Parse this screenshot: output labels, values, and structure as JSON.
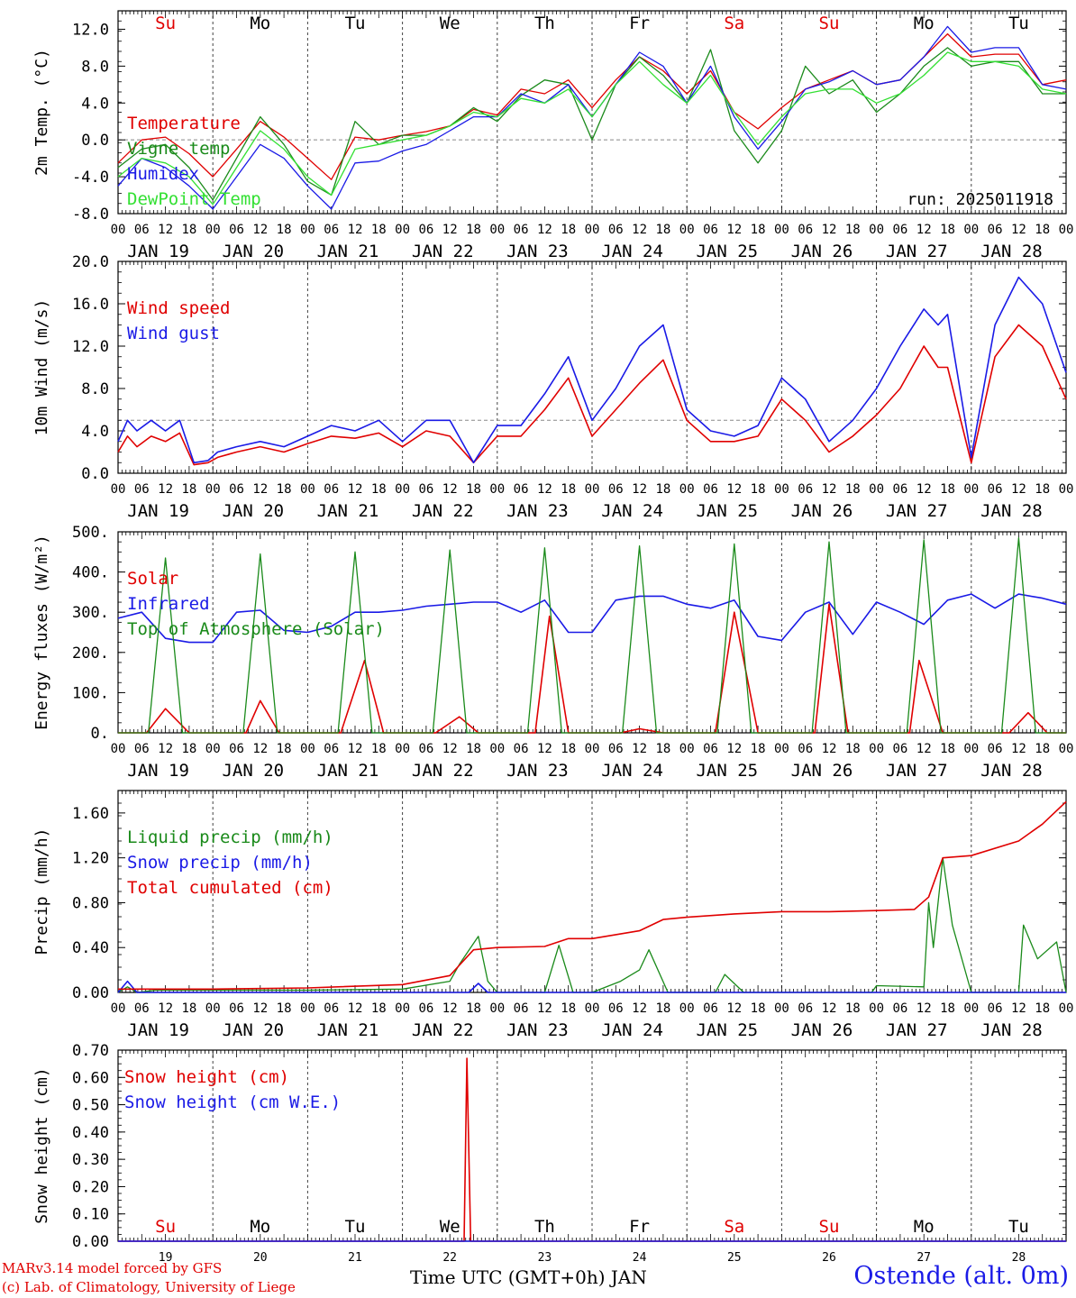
{
  "colors": {
    "red": "#e00000",
    "blue": "#1a1ae6",
    "green": "#1a8a1a",
    "lightgreen": "#33e033",
    "black": "#000000",
    "ref": "#888888"
  },
  "footer": {
    "credit_line1": "MARv3.14 model forced by GFS",
    "credit_line2": "(c) Lab. of Climatology, University of Liege",
    "xlabel": "Time UTC (GMT+0h) JAN",
    "station": "Ostende (alt. 0m)"
  },
  "x_axis": {
    "start_day": 19,
    "days": 10,
    "hour_ticks": [
      "00",
      "06",
      "12",
      "18"
    ],
    "end_tick": "00",
    "date_labels": [
      "JAN 19",
      "JAN 20",
      "JAN 21",
      "JAN 22",
      "JAN 23",
      "JAN 24",
      "JAN 25",
      "JAN 26",
      "JAN 27",
      "JAN 28"
    ],
    "weekday_labels": [
      "Su",
      "Mo",
      "Tu",
      "We",
      "Th",
      "Fr",
      "Sa",
      "Su",
      "Mo",
      "Tu"
    ],
    "weekday_colors": [
      "red",
      "black",
      "black",
      "black",
      "black",
      "black",
      "red",
      "red",
      "black",
      "black"
    ],
    "bottom_day_numbers": [
      "19",
      "20",
      "21",
      "22",
      "23",
      "24",
      "25",
      "26",
      "27",
      "28"
    ]
  },
  "chart_data": [
    {
      "type": "line",
      "ylabel": "2m Temp. (°C)",
      "ylim": [
        -8,
        14
      ],
      "yticks": [
        "-8.0",
        "-4.0",
        "0.0",
        "4.0",
        "8.0",
        "12.0"
      ],
      "ref_line": 0,
      "show_weekdays": true,
      "annotation": "run: 2025011918",
      "series": [
        {
          "name": "Temperature",
          "color": "red",
          "x": [
            0,
            0.25,
            0.5,
            0.75,
            1,
            1.25,
            1.5,
            1.75,
            2,
            2.25,
            2.5,
            2.75,
            3,
            3.25,
            3.5,
            3.75,
            4,
            4.25,
            4.5,
            4.75,
            5,
            5.25,
            5.5,
            5.75,
            6,
            6.25,
            6.5,
            6.75,
            7,
            7.25,
            7.5,
            7.75,
            8,
            8.25,
            8.5,
            8.75,
            9,
            9.25,
            9.5,
            9.75,
            10
          ],
          "y": [
            -2.5,
            0,
            0.3,
            -1.5,
            -4,
            -1,
            2,
            0.3,
            -2,
            -4.3,
            0.3,
            0,
            0.5,
            0.9,
            1.5,
            3.3,
            2.7,
            5.5,
            5,
            6.5,
            3.5,
            6.5,
            9,
            7.5,
            5,
            7.5,
            3,
            1.2,
            3.5,
            5.5,
            6.5,
            7.5,
            6,
            6.5,
            9,
            11.5,
            9,
            9.3,
            9.3,
            6,
            6.5
          ]
        },
        {
          "name": "Vigne temp",
          "color": "green",
          "x": [
            0,
            0.25,
            0.5,
            0.75,
            1,
            1.25,
            1.5,
            1.75,
            2,
            2.25,
            2.5,
            2.75,
            3,
            3.25,
            3.5,
            3.75,
            4,
            4.25,
            4.5,
            4.75,
            5,
            5.25,
            5.5,
            5.75,
            6,
            6.25,
            6.5,
            6.75,
            7,
            7.25,
            7.5,
            7.75,
            8,
            8.25,
            8.5,
            8.75,
            9,
            9.25,
            9.5,
            9.75,
            10
          ],
          "y": [
            -3,
            -1,
            -0.5,
            -3,
            -6.5,
            -2,
            2.5,
            -0.5,
            -4.5,
            -6,
            2,
            -0.5,
            0.5,
            0.5,
            1.5,
            3.5,
            2,
            4.8,
            6.5,
            6,
            0,
            6,
            9,
            7,
            4,
            9.8,
            1,
            -2.5,
            1,
            8,
            5,
            6.5,
            3,
            5,
            8,
            10,
            8,
            8.5,
            8.5,
            5,
            5
          ]
        },
        {
          "name": "Humidex",
          "color": "blue",
          "x": [
            0,
            0.25,
            0.5,
            0.75,
            1,
            1.25,
            1.5,
            1.75,
            2,
            2.25,
            2.5,
            2.75,
            3,
            3.25,
            3.5,
            3.75,
            4,
            4.25,
            4.5,
            4.75,
            5,
            5.25,
            5.5,
            5.75,
            6,
            6.25,
            6.5,
            6.75,
            7,
            7.25,
            7.5,
            7.75,
            8,
            8.25,
            8.5,
            8.75,
            9,
            9.25,
            9.5,
            9.75,
            10
          ],
          "y": [
            -5,
            -2,
            -3,
            -5,
            -7.5,
            -4,
            -0.5,
            -2,
            -5,
            -7.5,
            -2.5,
            -2.3,
            -1.2,
            -0.5,
            1,
            2.5,
            2.5,
            5,
            4,
            6,
            2.5,
            6,
            9.5,
            8,
            4,
            8,
            2.5,
            -1,
            2,
            5.5,
            6.3,
            7.5,
            6,
            6.5,
            9,
            12.3,
            9.5,
            10,
            10,
            6,
            5.5
          ]
        },
        {
          "name": "DewPoint Temp",
          "color": "lightgreen",
          "x": [
            0,
            0.25,
            0.5,
            0.75,
            1,
            1.25,
            1.5,
            1.75,
            2,
            2.25,
            2.5,
            2.75,
            3,
            3.25,
            3.5,
            3.75,
            4,
            4.25,
            4.5,
            4.75,
            5,
            5.25,
            5.5,
            5.75,
            6,
            6.25,
            6.5,
            6.75,
            7,
            7.25,
            7.5,
            7.75,
            8,
            8.25,
            8.5,
            8.75,
            9,
            9.25,
            9.5,
            9.75,
            10
          ],
          "y": [
            -4,
            -2,
            -2.5,
            -4,
            -7,
            -3,
            1,
            -1,
            -4,
            -6,
            -1,
            -0.5,
            0,
            0.5,
            1.5,
            3,
            2.5,
            4.5,
            4,
            5.5,
            2.5,
            6,
            8.5,
            6,
            4,
            7,
            3,
            -0.5,
            2.5,
            5,
            5.5,
            5.5,
            4,
            5,
            7,
            9.5,
            8.5,
            8.5,
            8,
            5.5,
            5
          ]
        }
      ]
    },
    {
      "type": "line",
      "ylabel": "10m Wind (m/s)",
      "ylim": [
        0,
        20
      ],
      "yticks": [
        "0.0",
        "4.0",
        "8.0",
        "12.0",
        "16.0",
        "20.0"
      ],
      "ref_line": 5,
      "series": [
        {
          "name": "Wind speed",
          "color": "red",
          "x": [
            0,
            0.1,
            0.2,
            0.35,
            0.5,
            0.65,
            0.8,
            0.95,
            1.05,
            1.25,
            1.5,
            1.75,
            2,
            2.25,
            2.5,
            2.75,
            3,
            3.25,
            3.5,
            3.75,
            4,
            4.25,
            4.5,
            4.75,
            5,
            5.25,
            5.5,
            5.75,
            6,
            6.25,
            6.5,
            6.75,
            7,
            7.25,
            7.5,
            7.75,
            8,
            8.25,
            8.5,
            8.65,
            8.75,
            9,
            9.25,
            9.5,
            9.75,
            10
          ],
          "y": [
            2,
            3.5,
            2.5,
            3.5,
            3,
            3.8,
            0.8,
            1,
            1.5,
            2,
            2.5,
            2,
            2.8,
            3.5,
            3.3,
            3.8,
            2.5,
            4,
            3.5,
            1,
            3.5,
            3.5,
            6,
            9,
            3.5,
            6,
            8.5,
            10.7,
            5,
            3,
            3,
            3.5,
            7,
            5,
            2,
            3.5,
            5.5,
            8,
            12,
            10,
            10,
            1,
            11,
            14,
            12,
            7
          ]
        },
        {
          "name": "Wind gust",
          "color": "blue",
          "x": [
            0,
            0.1,
            0.2,
            0.35,
            0.5,
            0.65,
            0.8,
            0.95,
            1.05,
            1.25,
            1.5,
            1.75,
            2,
            2.25,
            2.5,
            2.75,
            3,
            3.25,
            3.5,
            3.75,
            4,
            4.25,
            4.5,
            4.75,
            5,
            5.25,
            5.5,
            5.75,
            6,
            6.25,
            6.5,
            6.75,
            7,
            7.25,
            7.5,
            7.75,
            8,
            8.25,
            8.5,
            8.65,
            8.75,
            9,
            9.25,
            9.5,
            9.75,
            10
          ],
          "y": [
            3,
            5,
            4,
            5,
            4,
            5,
            1,
            1.2,
            2,
            2.5,
            3,
            2.5,
            3.5,
            4.5,
            4,
            5,
            3,
            5,
            5,
            1,
            4.5,
            4.5,
            7.5,
            11,
            5,
            8,
            12,
            14,
            6,
            4,
            3.5,
            4.5,
            9,
            7,
            3,
            5,
            8,
            12,
            15.5,
            14,
            15,
            1.5,
            14,
            18.5,
            16,
            9.5
          ]
        }
      ]
    },
    {
      "type": "line",
      "ylabel": "Energy fluxes (W/m²)",
      "ylim": [
        0,
        500
      ],
      "yticks": [
        "0.",
        "100.",
        "200.",
        "300.",
        "400.",
        "500."
      ],
      "series": [
        {
          "name": "Solar",
          "color": "red",
          "x": [
            0,
            0.3,
            0.5,
            0.75,
            1,
            1.35,
            1.5,
            1.7,
            2,
            2.35,
            2.6,
            2.8,
            3,
            3.35,
            3.6,
            3.8,
            4,
            4.4,
            4.55,
            4.75,
            5,
            5.3,
            5.5,
            5.75,
            6,
            6.3,
            6.5,
            6.75,
            7,
            7.35,
            7.5,
            7.7,
            8,
            8.35,
            8.45,
            8.7,
            9,
            9.4,
            9.6,
            9.8,
            10
          ],
          "y": [
            0,
            0,
            60,
            0,
            0,
            0,
            80,
            0,
            0,
            0,
            180,
            0,
            0,
            0,
            40,
            0,
            0,
            0,
            290,
            0,
            0,
            0,
            10,
            0,
            0,
            0,
            300,
            0,
            0,
            0,
            320,
            0,
            0,
            0,
            180,
            0,
            0,
            0,
            50,
            0,
            0
          ]
        },
        {
          "name": "Infrared",
          "color": "blue",
          "x": [
            0,
            0.25,
            0.5,
            0.75,
            1,
            1.25,
            1.5,
            1.75,
            2,
            2.25,
            2.5,
            2.75,
            3,
            3.25,
            3.5,
            3.75,
            4,
            4.25,
            4.5,
            4.75,
            5,
            5.25,
            5.5,
            5.75,
            6,
            6.25,
            6.5,
            6.75,
            7,
            7.25,
            7.5,
            7.75,
            8,
            8.25,
            8.5,
            8.75,
            9,
            9.25,
            9.5,
            9.75,
            10
          ],
          "y": [
            285,
            300,
            235,
            225,
            225,
            300,
            305,
            255,
            250,
            265,
            300,
            300,
            305,
            315,
            320,
            325,
            325,
            300,
            330,
            250,
            250,
            330,
            340,
            340,
            320,
            310,
            330,
            240,
            230,
            300,
            325,
            245,
            325,
            300,
            270,
            330,
            345,
            310,
            345,
            335,
            320
          ]
        },
        {
          "name": "Top of Atmosphere (Solar)",
          "color": "green",
          "x": [
            0,
            0.32,
            0.5,
            0.68,
            1,
            1.32,
            1.5,
            1.68,
            2,
            2.32,
            2.5,
            2.68,
            3,
            3.32,
            3.5,
            3.68,
            4,
            4.32,
            4.5,
            4.68,
            5,
            5.32,
            5.5,
            5.68,
            6,
            6.32,
            6.5,
            6.68,
            7,
            7.32,
            7.5,
            7.68,
            8,
            8.32,
            8.5,
            8.68,
            9,
            9.32,
            9.5,
            9.68,
            10
          ],
          "y": [
            0,
            0,
            435,
            0,
            0,
            0,
            445,
            0,
            0,
            0,
            450,
            0,
            0,
            0,
            455,
            0,
            0,
            0,
            460,
            0,
            0,
            0,
            465,
            0,
            0,
            0,
            470,
            0,
            0,
            0,
            475,
            0,
            0,
            0,
            480,
            0,
            0,
            0,
            485,
            0,
            0
          ]
        }
      ]
    },
    {
      "type": "line",
      "ylabel": "Precip (mm/h)",
      "ylim": [
        0,
        1.8
      ],
      "yticks": [
        "0.00",
        "0.40",
        "0.80",
        "1.20",
        "1.60"
      ],
      "series": [
        {
          "name": "Liquid precip (mm/h)",
          "color": "green",
          "x": [
            0,
            0.1,
            0.2,
            0.4,
            1,
            2,
            3,
            3.5,
            3.6,
            3.8,
            3.9,
            4,
            4.5,
            4.65,
            4.8,
            5,
            5.3,
            5.5,
            5.6,
            5.8,
            6,
            6.3,
            6.4,
            6.6,
            7,
            7.95,
            8,
            8.5,
            8.55,
            8.6,
            8.7,
            8.8,
            9,
            9.5,
            9.55,
            9.7,
            9.9,
            10
          ],
          "y": [
            0,
            0.05,
            0,
            0.02,
            0.02,
            0.02,
            0.03,
            0.1,
            0.25,
            0.5,
            0.1,
            0,
            0,
            0.42,
            0,
            0,
            0.1,
            0.2,
            0.38,
            0,
            0,
            0,
            0.16,
            0,
            0,
            0,
            0.06,
            0.05,
            0.8,
            0.4,
            1.2,
            0.6,
            0,
            0,
            0.6,
            0.3,
            0.45,
            0
          ]
        },
        {
          "name": "Snow precip (mm/h)",
          "color": "blue",
          "x": [
            0,
            0.1,
            0.2,
            3.7,
            3.8,
            3.9,
            4,
            10
          ],
          "y": [
            0,
            0.1,
            0,
            0,
            0.08,
            0,
            0,
            0
          ]
        },
        {
          "name": "Total cumulated (cm)",
          "color": "red",
          "x": [
            0,
            1,
            2,
            3,
            3.5,
            3.75,
            4,
            4.5,
            4.75,
            5,
            5.5,
            5.75,
            6,
            6.5,
            7,
            7.5,
            8,
            8.4,
            8.55,
            8.7,
            9,
            9.5,
            9.75,
            10
          ],
          "y": [
            0.03,
            0.03,
            0.04,
            0.07,
            0.15,
            0.38,
            0.4,
            0.41,
            0.48,
            0.48,
            0.55,
            0.65,
            0.67,
            0.7,
            0.72,
            0.72,
            0.73,
            0.74,
            0.85,
            1.2,
            1.22,
            1.35,
            1.5,
            1.7
          ]
        }
      ]
    },
    {
      "type": "line",
      "ylabel": "Snow height (cm)",
      "ylim": [
        0,
        0.7
      ],
      "yticks": [
        "0.00",
        "0.10",
        "0.20",
        "0.30",
        "0.40",
        "0.50",
        "0.60",
        "0.70"
      ],
      "show_weekdays_bottom": true,
      "series": [
        {
          "name": "Snow height (cm)",
          "color": "red",
          "x": [
            0,
            3.6,
            3.65,
            3.68,
            3.72,
            10
          ],
          "y": [
            0,
            0,
            0,
            0.67,
            0,
            0
          ]
        },
        {
          "name": "Snow height (cm W.E.)",
          "color": "blue",
          "x": [
            0,
            10
          ],
          "y": [
            0,
            0
          ]
        }
      ]
    }
  ]
}
